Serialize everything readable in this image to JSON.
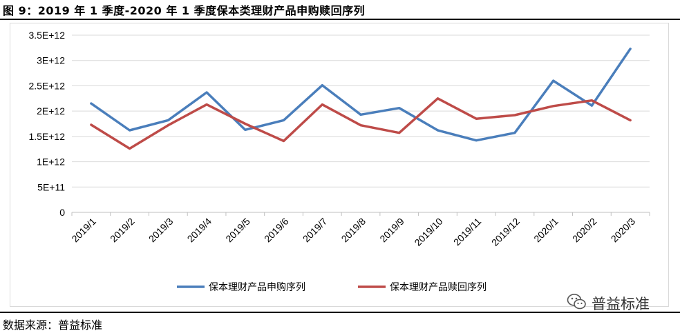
{
  "header": {
    "title": "图 9：2019 年 1 季度-2020 年 1 季度保本类理财产品申购赎回序列"
  },
  "footer": {
    "source": "数据来源：普益标准"
  },
  "watermark": {
    "text": "普益标准",
    "icon": "wechat-icon"
  },
  "chart_data": {
    "type": "line",
    "title": "",
    "xlabel": "",
    "ylabel": "",
    "categories": [
      "2019/1",
      "2019/2",
      "2019/3",
      "2019/4",
      "2019/5",
      "2019/6",
      "2019/7",
      "2019/8",
      "2019/9",
      "2019/10",
      "2019/11",
      "2019/12",
      "2020/1",
      "2020/2",
      "2020/3"
    ],
    "y_ticks": [
      {
        "value": 0,
        "label": "0"
      },
      {
        "value": 500000000000,
        "label": "5E+11"
      },
      {
        "value": 1000000000000,
        "label": "1E+12"
      },
      {
        "value": 1500000000000,
        "label": "1.5E+12"
      },
      {
        "value": 2000000000000,
        "label": "2E+12"
      },
      {
        "value": 2500000000000,
        "label": "2.5E+12"
      },
      {
        "value": 3000000000000,
        "label": "3E+12"
      },
      {
        "value": 3500000000000,
        "label": "3.5E+12"
      }
    ],
    "ylim": [
      0,
      3500000000000
    ],
    "grid": true,
    "legend_position": "bottom",
    "series": [
      {
        "name": "保本理财产品申购序列",
        "color": "#4a7ebb",
        "values": [
          2150000000000,
          1620000000000,
          1820000000000,
          2370000000000,
          1630000000000,
          1820000000000,
          2510000000000,
          1930000000000,
          2060000000000,
          1620000000000,
          1420000000000,
          1570000000000,
          2600000000000,
          2110000000000,
          3230000000000
        ]
      },
      {
        "name": "保本理财产品赎回序列",
        "color": "#be4b48",
        "values": [
          1730000000000,
          1260000000000,
          1720000000000,
          2130000000000,
          1750000000000,
          1410000000000,
          2130000000000,
          1720000000000,
          1570000000000,
          2250000000000,
          1850000000000,
          1920000000000,
          2100000000000,
          2210000000000,
          1820000000000
        ]
      }
    ]
  }
}
